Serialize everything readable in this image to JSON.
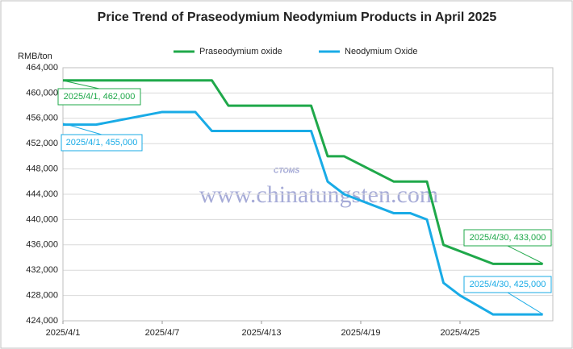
{
  "chart_data": {
    "type": "line",
    "title": "Price Trend of Praseodymium Neodymium Products in April 2025",
    "ylabel": "RMB/ton",
    "ylim": [
      424000,
      464000
    ],
    "yticks": [
      {
        "value": 424000,
        "label": "424,000"
      },
      {
        "value": 428000,
        "label": "428,000"
      },
      {
        "value": 432000,
        "label": "432,000"
      },
      {
        "value": 436000,
        "label": "436,000"
      },
      {
        "value": 440000,
        "label": "440,000"
      },
      {
        "value": 444000,
        "label": "444,000"
      },
      {
        "value": 448000,
        "label": "448,000"
      },
      {
        "value": 452000,
        "label": "452,000"
      },
      {
        "value": 456000,
        "label": "456,000"
      },
      {
        "value": 460000,
        "label": "460,000"
      },
      {
        "value": 464000,
        "label": "464,000"
      }
    ],
    "xticks": [
      "2025/4/1",
      "2025/4/7",
      "2025/4/13",
      "2025/4/19",
      "2025/4/25"
    ],
    "grid": true,
    "legend": "top",
    "series": [
      {
        "name": "Praseodymium oxide",
        "color": "#1fa84a",
        "x": [
          "2025/4/1",
          "2025/4/10",
          "2025/4/11",
          "2025/4/16",
          "2025/4/17",
          "2025/4/18",
          "2025/4/21",
          "2025/4/23",
          "2025/4/24",
          "2025/4/27",
          "2025/4/30"
        ],
        "values": [
          462000,
          462000,
          458000,
          458000,
          450000,
          450000,
          446000,
          446000,
          436000,
          433000,
          433000
        ]
      },
      {
        "name": "Neodymium Oxide",
        "color": "#19abe6",
        "x": [
          "2025/4/1",
          "2025/4/3",
          "2025/4/7",
          "2025/4/9",
          "2025/4/10",
          "2025/4/16",
          "2025/4/17",
          "2025/4/18",
          "2025/4/19",
          "2025/4/21",
          "2025/4/22",
          "2025/4/23",
          "2025/4/24",
          "2025/4/25",
          "2025/4/27",
          "2025/4/30"
        ],
        "values": [
          455000,
          455000,
          457000,
          457000,
          454000,
          454000,
          446000,
          444000,
          443000,
          441000,
          441000,
          440000,
          430000,
          428000,
          425000,
          425000
        ]
      }
    ],
    "annotations": [
      "2025/4/1, 462,000",
      "2025/4/1, 455,000",
      "2025/4/30, 433,000",
      "2025/4/30, 425,000"
    ],
    "watermark": "www.chinatungsten.com",
    "logo": "CTOMS"
  }
}
